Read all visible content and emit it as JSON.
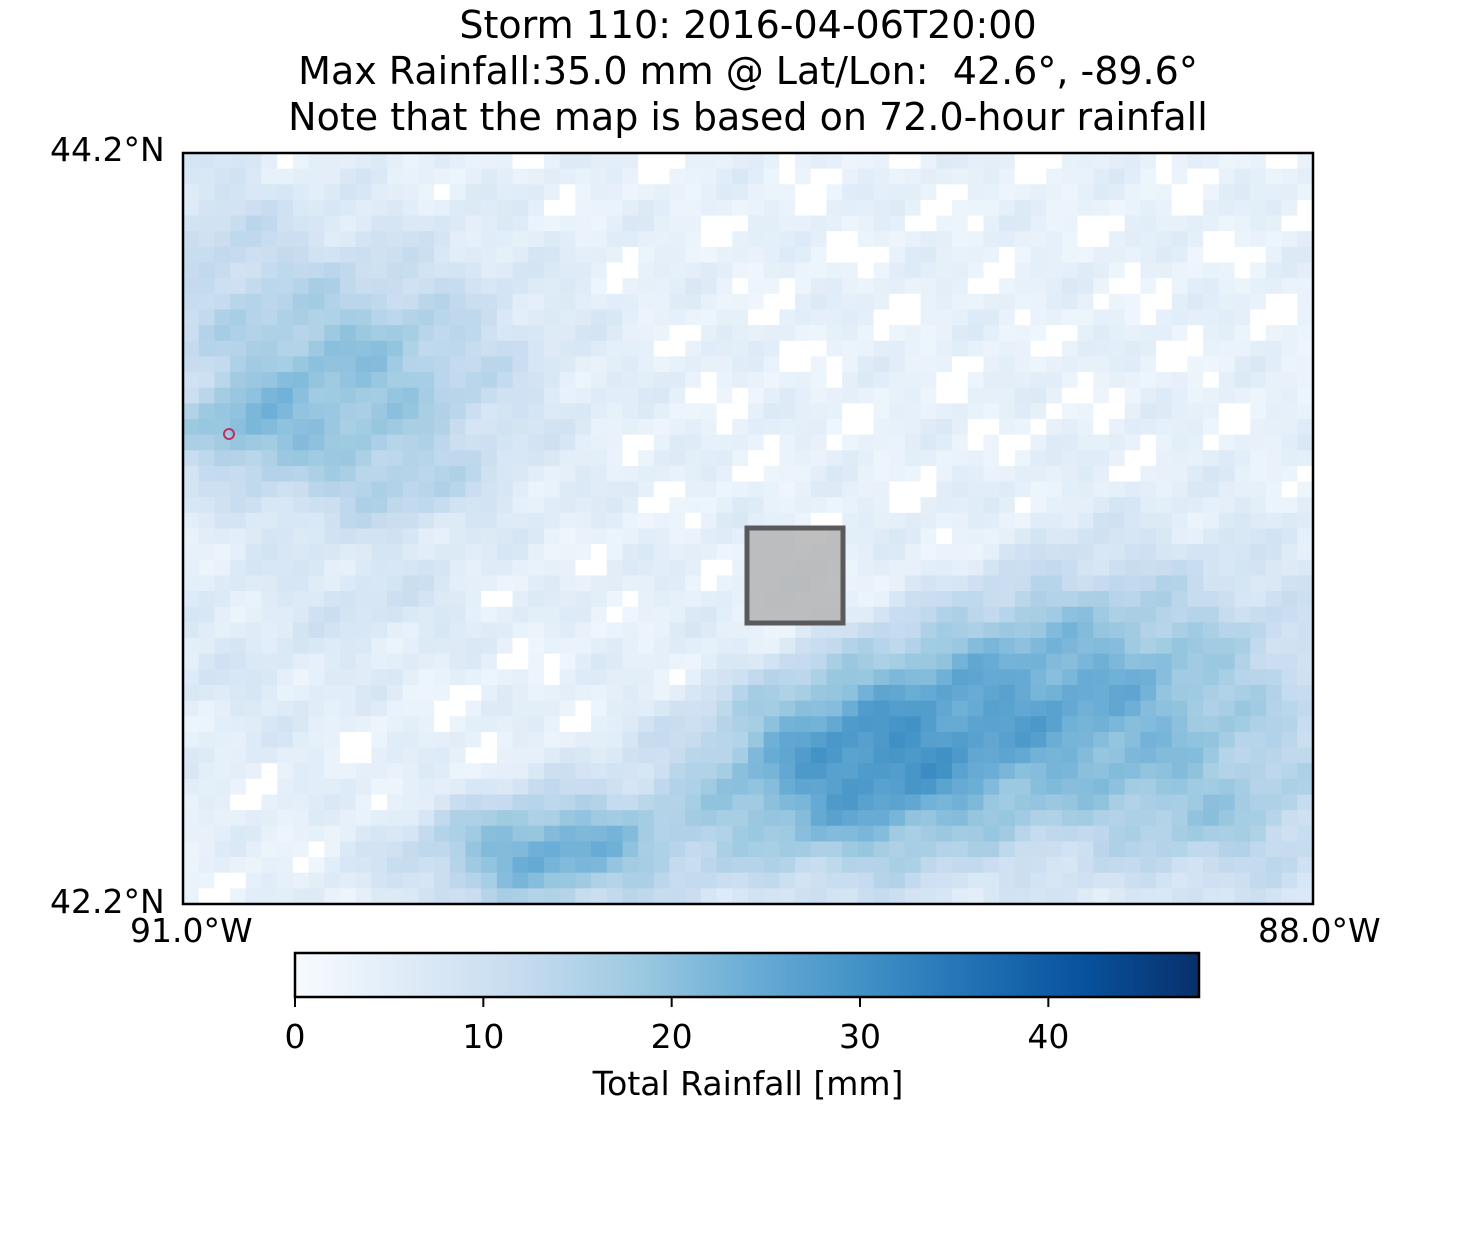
{
  "title": {
    "line1": "Storm 110: 2016-04-06T20:00",
    "line2": "Max Rainfall:35.0 mm @ Lat/Lon:  42.6°, -89.6°",
    "line3": "Note that the map is based on 72.0-hour rainfall"
  },
  "map": {
    "lat_top_label": "44.2°N",
    "lat_bottom_label": "42.2°N",
    "lon_left_label": "91.0°W",
    "lon_right_label": "88.0°W",
    "lat_range": [
      42.2,
      44.2
    ],
    "lon_range": [
      -91.0,
      -88.0
    ],
    "max_point": {
      "lat": 42.6,
      "lon": -89.6,
      "marker_color": "#c0305a"
    },
    "highlight_box": {
      "lat_min": 43.0,
      "lat_max": 43.25,
      "lon_min": -89.55,
      "lon_max": -89.3,
      "fill": "#b4b4b4",
      "edge": "#5a5a5a"
    },
    "colormap": "Blues"
  },
  "colorbar": {
    "label": "Total Rainfall [mm]",
    "range": [
      0,
      48
    ],
    "ticks": [
      {
        "value": 0,
        "label": "0"
      },
      {
        "value": 10,
        "label": "10"
      },
      {
        "value": 20,
        "label": "20"
      },
      {
        "value": 30,
        "label": "30"
      },
      {
        "value": 40,
        "label": "40"
      }
    ]
  }
}
